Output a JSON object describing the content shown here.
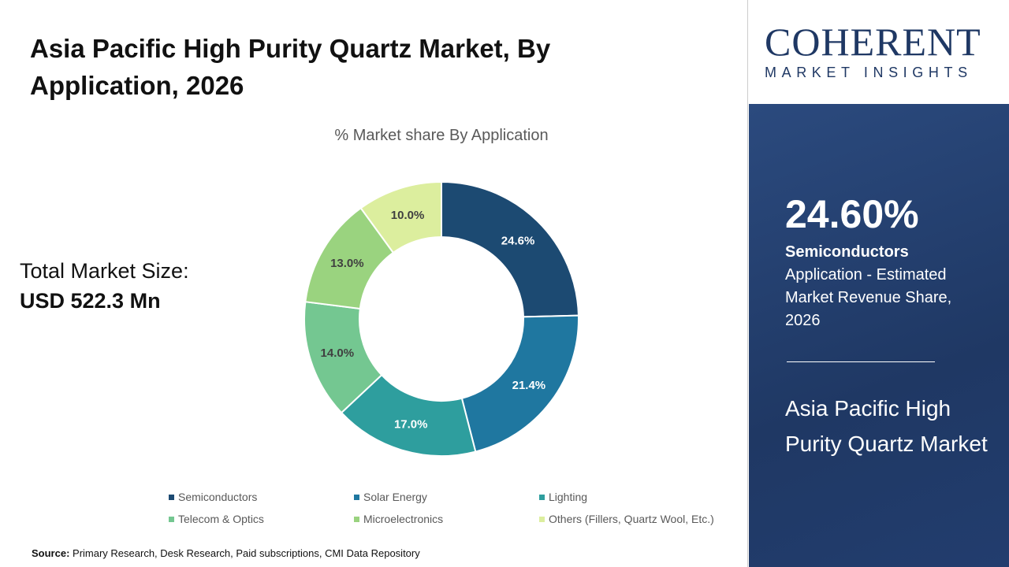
{
  "title": "Asia Pacific High Purity Quartz Market, By Application, 2026",
  "total_label": "Total Market Size:",
  "total_value": "USD 522.3 Mn",
  "source_label": "Source:",
  "source_text": "Primary Research, Desk Research, Paid subscriptions, CMI Data Repository",
  "logo": {
    "main": "COHERENT",
    "sub": "MARKET INSIGHTS"
  },
  "panel": {
    "pct": "24.60%",
    "segment": "Semiconductors",
    "desc": "Application - Estimated Market Revenue Share, 2026",
    "market": "Asia Pacific High Purity Quartz Market"
  },
  "chart_data": {
    "type": "donut",
    "title": "% Market share By Application",
    "legend_position": "bottom",
    "categories": [
      "Semiconductors",
      "Solar Energy",
      "Lighting",
      "Telecom & Optics",
      "Microelectronics",
      "Others (Fillers, Quartz Wool, Etc.)"
    ],
    "values": [
      24.6,
      21.4,
      17.0,
      14.0,
      13.0,
      10.0
    ],
    "labels": [
      "24.6%",
      "21.4%",
      "17.0%",
      "14.0%",
      "13.0%",
      "10.0%"
    ],
    "colors": [
      "#1c4a72",
      "#1f77a0",
      "#2e9e9e",
      "#74c791",
      "#9ad37f",
      "#dcee9e"
    ]
  }
}
